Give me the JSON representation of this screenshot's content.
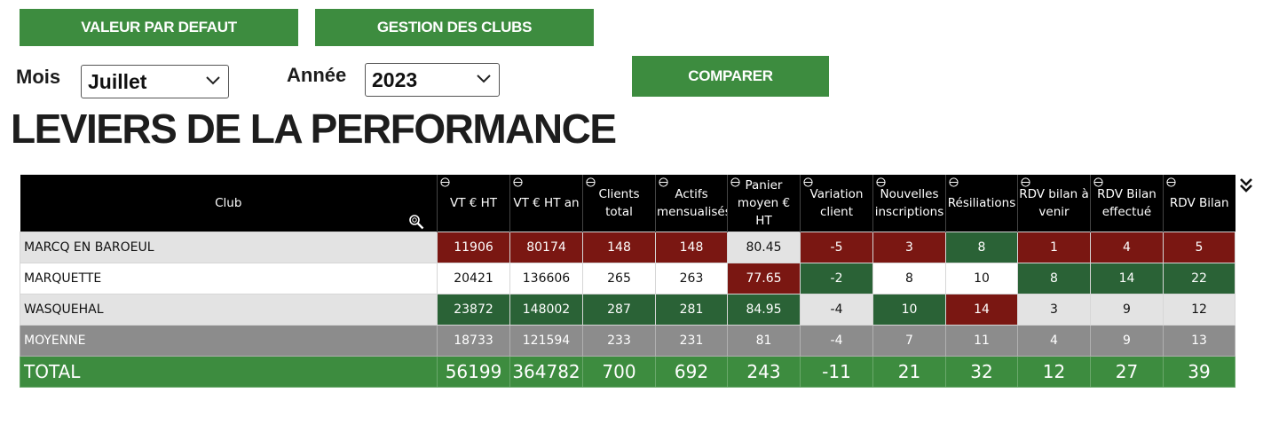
{
  "buttons": {
    "default_values": "VALEUR PAR DEFAUT",
    "club_management": "GESTION DES CLUBS",
    "compare": "COMPARER"
  },
  "filters": {
    "month_label": "Mois",
    "month_value": "Juillet",
    "year_label": "Année",
    "year_value": "2023"
  },
  "title": "LEVIERS DE LA PERFORMANCE",
  "table": {
    "headers": [
      "Club",
      "VT € HT",
      "VT € HT an",
      "Clients total",
      "Actifs mensualisés",
      "Panier moyen € HT",
      "Variation client",
      "Nouvelles inscriptions",
      "Résiliations",
      "RDV bilan à venir",
      "RDV Bilan effectué",
      "RDV Bilan"
    ],
    "rows": [
      {
        "club": "MARCQ EN BAROEUL",
        "values": [
          "11906",
          "80174",
          "148",
          "148",
          "80.45",
          "-5",
          "3",
          "8",
          "1",
          "4",
          "5"
        ]
      },
      {
        "club": "MARQUETTE",
        "values": [
          "20421",
          "136606",
          "265",
          "263",
          "77.65",
          "-2",
          "8",
          "10",
          "8",
          "14",
          "22"
        ]
      },
      {
        "club": "WASQUEHAL",
        "values": [
          "23872",
          "148002",
          "287",
          "281",
          "84.95",
          "-4",
          "10",
          "14",
          "3",
          "9",
          "12"
        ]
      }
    ],
    "average": {
      "club": "MOYENNE",
      "values": [
        "18733",
        "121594",
        "233",
        "231",
        "81",
        "-4",
        "7",
        "11",
        "4",
        "9",
        "13"
      ]
    },
    "total": {
      "club": "TOTAL",
      "values": [
        "56199",
        "364782",
        "700",
        "692",
        "243",
        "-11",
        "21",
        "32",
        "12",
        "27",
        "39"
      ]
    }
  },
  "colors": {
    "button_green": "#3d8c3f",
    "cell_red": "#7a1712",
    "cell_green": "#2a6236",
    "average_grey": "#8c8c8c"
  },
  "icons": [
    "sort-icon",
    "magnifier-icon",
    "chevron-down-icon",
    "double-chevron-down-icon"
  ]
}
